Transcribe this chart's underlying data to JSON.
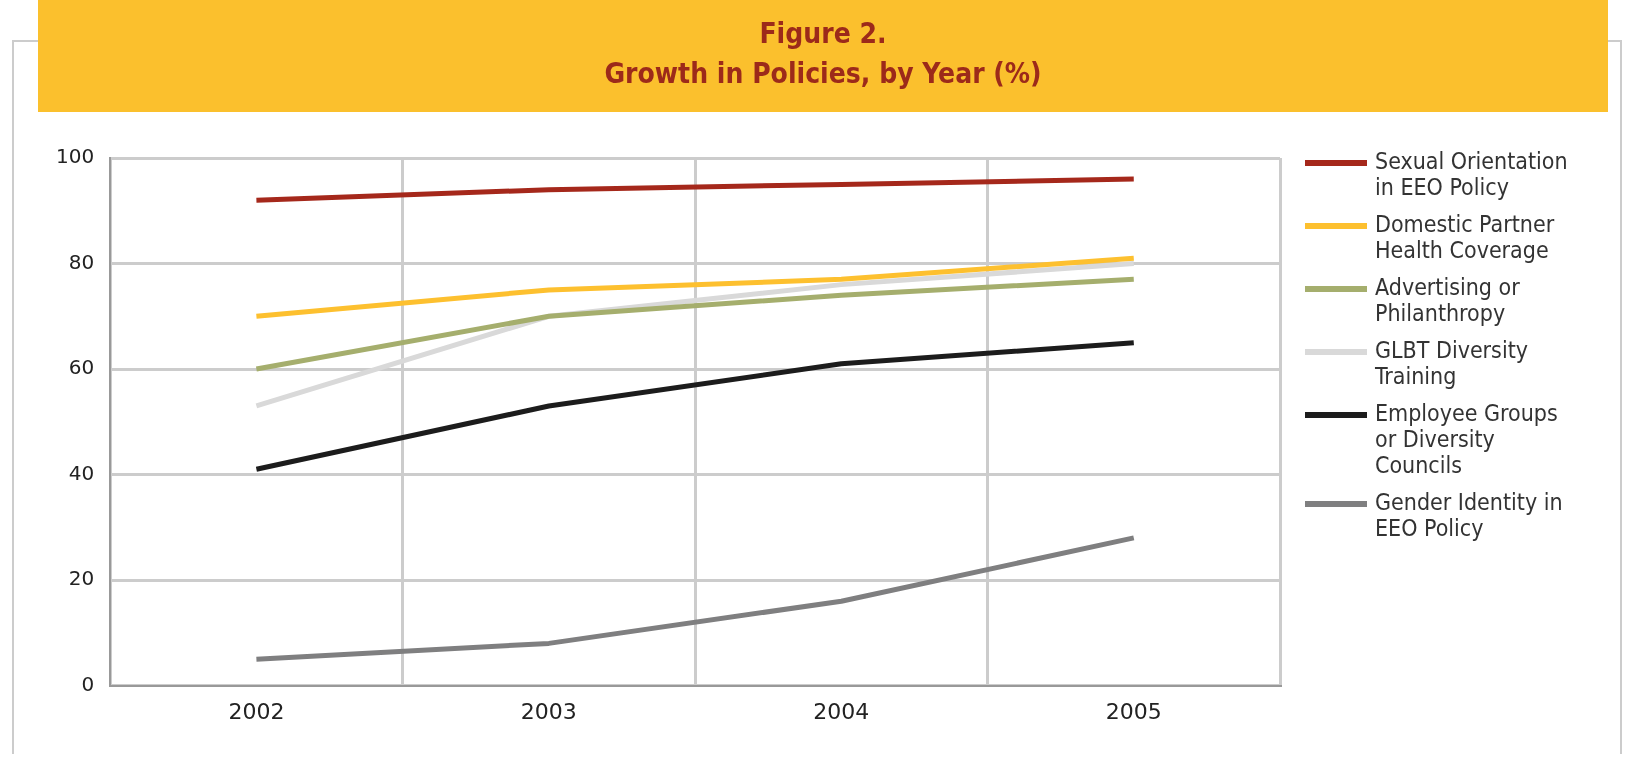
{
  "chart_data": {
    "type": "line",
    "title": "Figure 2.",
    "subtitle": "Growth in Policies, by Year (%)",
    "categories": [
      "2002",
      "2003",
      "2004",
      "2005"
    ],
    "series": [
      {
        "name": "Sexual Orientation in EEO Policy",
        "color": "#a5281b",
        "values": [
          92,
          94,
          95,
          96
        ]
      },
      {
        "name": "Domestic Partner Health Coverage",
        "color": "#fdc02f",
        "values": [
          70,
          75,
          77,
          81
        ]
      },
      {
        "name": "Advertising or Philanthropy",
        "color": "#a5ae6d",
        "values": [
          60,
          70,
          74,
          77
        ]
      },
      {
        "name": "GLBT Diversity Training",
        "color": "#d9d9d9",
        "values": [
          53,
          70,
          76,
          80
        ]
      },
      {
        "name": "Employee Groups or Diversity Councils",
        "color": "#1c1c1c",
        "values": [
          41,
          53,
          61,
          65
        ]
      },
      {
        "name": "Gender Identity in EEO Policy",
        "color": "#7f7f80",
        "values": [
          5,
          8,
          16,
          28
        ]
      }
    ],
    "ylim": [
      0,
      100
    ],
    "yticks": [
      0,
      20,
      40,
      60,
      80,
      100
    ],
    "grid": true,
    "legend": "right",
    "marker": "none",
    "line_style": "solid"
  }
}
